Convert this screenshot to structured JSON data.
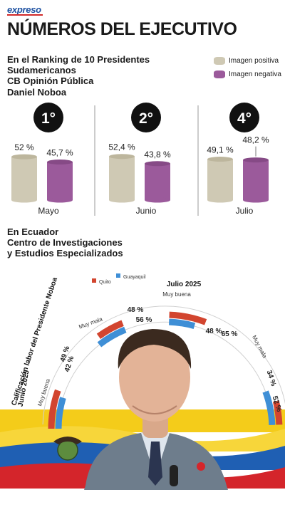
{
  "header": {
    "brand": "expreso",
    "title": "NÚMEROS DEL EJECUTIVO"
  },
  "ranking": {
    "title_line1": "En el Ranking de 10 Presidentes Sudamericanos",
    "title_line2": "CB Opinión Pública",
    "person": "Daniel Noboa",
    "legend": [
      {
        "label": "Imagen positiva",
        "color": "#cfc9b4"
      },
      {
        "label": "Imagen negativa",
        "color": "#9b5a9b"
      }
    ]
  },
  "ecuador": {
    "title_line1": "En Ecuador",
    "title_line2": "Centro de Investigaciones",
    "title_line3": "y Estudios Especializados"
  },
  "chart_data": [
    {
      "type": "bar",
      "categories": [
        "Mayo",
        "Junio",
        "Julio"
      ],
      "ranks": [
        "1°",
        "2°",
        "4°"
      ],
      "series": [
        {
          "name": "Imagen positiva",
          "values": [
            52,
            52.4,
            49.1
          ],
          "labels": [
            "52 %",
            "52,4 %",
            "49,1 %"
          ],
          "color": "#cfc9b4"
        },
        {
          "name": "Imagen negativa",
          "values": [
            45.7,
            43.8,
            48.2
          ],
          "labels": [
            "45,7 %",
            "43,8 %",
            "48,2 %"
          ],
          "color": "#9b5a9b"
        }
      ]
    },
    {
      "type": "bar",
      "title": "Calificación labor del Presidente Noboa",
      "legend": [
        {
          "name": "Quito",
          "color": "#d2452f"
        },
        {
          "name": "Guayaquil",
          "color": "#3f8fd6"
        }
      ],
      "groups": [
        {
          "period": "Junio 2025",
          "categories": [
            "Muy buena",
            "Muy mala"
          ],
          "quito": [
            49,
            48
          ],
          "guayaquil": [
            42,
            56
          ],
          "quito_labels": [
            "49 %",
            "48 %"
          ],
          "guayaquil_labels": [
            "42 %",
            "56 %"
          ]
        },
        {
          "period": "Julio 2025",
          "categories": [
            "Muy buena",
            "Muy mala"
          ],
          "quito": [
            65,
            34
          ],
          "guayaquil": [
            48,
            52
          ],
          "quito_labels": [
            "65 %",
            "34 %"
          ],
          "guayaquil_labels": [
            "48 %",
            "52 %"
          ]
        }
      ]
    }
  ]
}
